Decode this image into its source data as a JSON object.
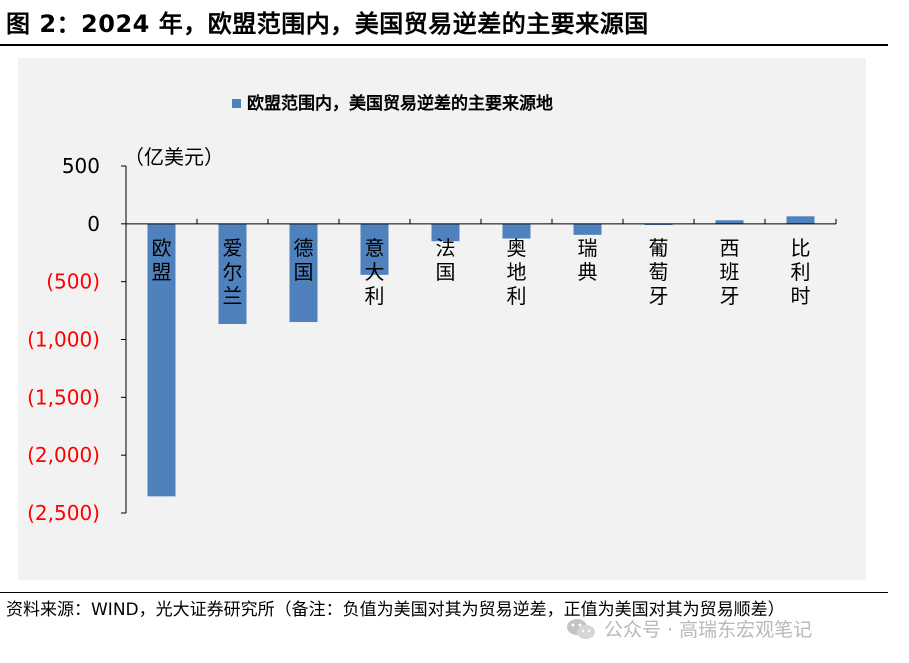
{
  "figure": {
    "title": "图 2：2024 年，欧盟范围内，美国贸易逆差的主要来源国"
  },
  "footer": {
    "source": "资料来源：WIND，光大证券研究所（备注：负值为美国对其为贸易逆差，正值为美国对其为贸易顺差）",
    "watermark": "公众号 · 高瑞东宏观笔记",
    "watermark_icon": "wechat-icon"
  },
  "colors": {
    "bar": "#4f81bd",
    "negative_tick": "#ff0000",
    "positive_tick": "#000000",
    "plot_background": "#f2f2f2"
  },
  "chart_data": {
    "type": "bar",
    "title": "",
    "unit_label": "（亿美元）",
    "legend": [
      "欧盟范围内，美国贸易逆差的主要来源地"
    ],
    "legend_position": "top",
    "categories": [
      "欧盟",
      "爱尔兰",
      "德国",
      "意大利",
      "法国",
      "奥地利",
      "瑞典",
      "葡萄牙",
      "西班牙",
      "比利时"
    ],
    "series": [
      {
        "name": "欧盟范围内，美国贸易逆差的主要来源地",
        "values": [
          -2356,
          -866,
          -849,
          -441,
          -150,
          -127,
          -95,
          -10,
          31,
          65
        ]
      }
    ],
    "ylim": [
      -2500,
      500
    ],
    "yticks": [
      500,
      0,
      -500,
      -1000,
      -1500,
      -2000,
      -2500
    ],
    "ytick_labels": [
      "500",
      "0",
      "(500)",
      "(1,000)",
      "(1,500)",
      "(2,000)",
      "(2,500)"
    ],
    "grid": false
  }
}
